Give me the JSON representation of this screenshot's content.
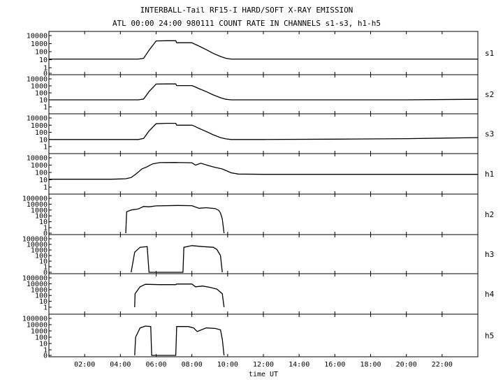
{
  "chart_data": {
    "type": "line",
    "title": "INTERBALL-Tail RF15-I HARD/SOFT X-RAY EMISSION",
    "subtitle": "ATL 00:00 24:00 980111  COUNT RATE IN CHANNELS s1-s3, h1-h5",
    "xlabel": "time UT",
    "x_unit": "hours UT",
    "xlim": [
      0,
      24
    ],
    "x_ticks": [
      "02:00",
      "04:00",
      "06:00",
      "08:00",
      "10:00",
      "12:00",
      "14:00",
      "16:00",
      "18:00",
      "20:00",
      "22:00"
    ],
    "y_scale": "log",
    "grid": false,
    "panels": [
      {
        "name": "s1",
        "ylim": [
          1,
          10000
        ],
        "y_ticks": [
          "10000",
          "1000",
          "100",
          "10",
          "1",
          "0"
        ],
        "x": [
          0,
          4.5,
          5.0,
          5.3,
          5.6,
          6.0,
          6.6,
          7.1,
          7.15,
          8.0,
          8.1,
          8.4,
          8.8,
          9.2,
          9.6,
          9.9,
          10.2,
          12,
          16,
          20,
          24
        ],
        "y": [
          12,
          12,
          12,
          15,
          150,
          2200,
          2300,
          2300,
          1300,
          1300,
          1000,
          500,
          180,
          60,
          25,
          15,
          12,
          12,
          12,
          12,
          12
        ]
      },
      {
        "name": "s2",
        "ylim": [
          1,
          10000
        ],
        "y_ticks": [
          "10000",
          "1000",
          "100",
          "10",
          "1"
        ],
        "x": [
          0,
          4.5,
          5.0,
          5.3,
          5.6,
          6.0,
          6.6,
          7.1,
          7.15,
          8.0,
          8.1,
          8.4,
          8.8,
          9.2,
          9.6,
          9.9,
          10.2,
          12,
          16,
          20,
          24
        ],
        "y": [
          10,
          10,
          10,
          13,
          150,
          1800,
          1900,
          1900,
          1100,
          1100,
          900,
          400,
          150,
          50,
          20,
          12,
          10,
          10,
          10,
          10,
          12
        ]
      },
      {
        "name": "s3",
        "ylim": [
          1,
          10000
        ],
        "y_ticks": [
          "10000",
          "1000",
          "100",
          "10",
          "1"
        ],
        "x": [
          0,
          4.5,
          5.0,
          5.3,
          5.6,
          6.0,
          6.6,
          7.1,
          7.15,
          8.0,
          8.1,
          8.4,
          8.8,
          9.2,
          9.6,
          9.9,
          10.2,
          12,
          16,
          20,
          24
        ],
        "y": [
          10,
          10,
          10,
          14,
          150,
          1600,
          1800,
          1800,
          1000,
          1000,
          800,
          350,
          130,
          45,
          18,
          12,
          10,
          10,
          11,
          13,
          18
        ]
      },
      {
        "name": "h1",
        "ylim": [
          1,
          10000
        ],
        "y_ticks": [
          "10000",
          "1000",
          "100",
          "10",
          "1"
        ],
        "x": [
          0,
          3.5,
          4.0,
          4.3,
          4.6,
          4.9,
          5.2,
          5.5,
          5.8,
          6.2,
          7.0,
          8.0,
          8.2,
          8.5,
          8.9,
          9.3,
          9.7,
          10.2,
          10.6,
          12,
          16,
          20,
          24
        ],
        "y": [
          12,
          12,
          13,
          14,
          20,
          70,
          300,
          600,
          1500,
          2200,
          2300,
          2100,
          1000,
          1800,
          900,
          500,
          300,
          90,
          60,
          55,
          55,
          55,
          55
        ]
      },
      {
        "name": "h2",
        "ylim": [
          1,
          100000
        ],
        "y_ticks": [
          "100000",
          "10000",
          "1000",
          "100",
          "10",
          "1",
          "0"
        ],
        "x": [
          4.3,
          4.35,
          4.6,
          5.0,
          5.3,
          5.6,
          6.0,
          7.2,
          8.0,
          8.4,
          8.8,
          9.3,
          9.5,
          9.6,
          9.7,
          9.8
        ],
        "y": [
          0,
          500,
          1000,
          1500,
          4000,
          3500,
          5000,
          6000,
          5500,
          2000,
          2500,
          1800,
          900,
          300,
          30,
          0
        ]
      },
      {
        "name": "h3",
        "ylim": [
          1,
          100000
        ],
        "y_ticks": [
          "100000",
          "10000",
          "1000",
          "100",
          "10",
          "1",
          "0"
        ],
        "x": [
          4.6,
          4.8,
          5.1,
          5.5,
          5.6,
          7.5,
          7.55,
          8.0,
          8.6,
          9.2,
          9.4,
          9.6,
          9.7
        ],
        "y": [
          0,
          400,
          3000,
          4000,
          0,
          0,
          3000,
          6000,
          4000,
          3000,
          1200,
          100,
          0
        ]
      },
      {
        "name": "h4",
        "ylim": [
          1,
          100000
        ],
        "y_ticks": [
          "100000",
          "10000",
          "1000",
          "100",
          "10",
          "1"
        ],
        "x": [
          4.8,
          4.82,
          5.1,
          5.4,
          6.2,
          7.1,
          7.15,
          8.0,
          8.2,
          8.6,
          9.0,
          9.4,
          9.7,
          9.8
        ],
        "y": [
          1,
          200,
          3000,
          8000,
          7000,
          7000,
          9000,
          9000,
          3000,
          4000,
          2500,
          1200,
          200,
          1
        ]
      },
      {
        "name": "h5",
        "ylim": [
          1,
          100000
        ],
        "y_ticks": [
          "100000",
          "10000",
          "1000",
          "100",
          "10",
          "1",
          "0"
        ],
        "x": [
          4.8,
          4.85,
          5.1,
          5.4,
          5.7,
          5.75,
          7.1,
          7.15,
          7.8,
          8.1,
          8.3,
          8.8,
          9.3,
          9.6,
          9.7,
          9.8
        ],
        "y": [
          0,
          100,
          3000,
          6000,
          5000,
          0,
          0,
          5000,
          5000,
          3000,
          800,
          3000,
          2500,
          1500,
          50,
          0
        ]
      }
    ]
  }
}
